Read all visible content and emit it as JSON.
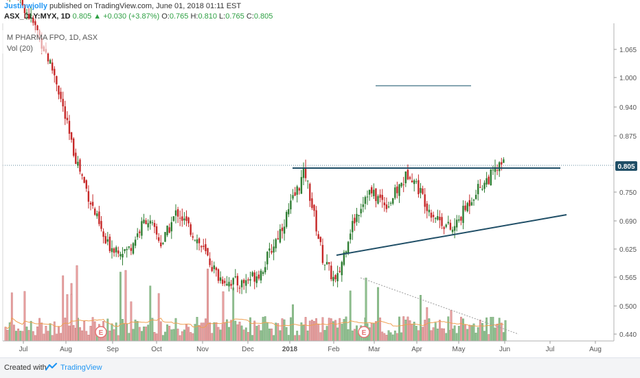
{
  "header": {
    "author": "Justinwjolly",
    "published_text": "published on TradingView.com, June 01, 2018 01:11 EST",
    "symbol": "ASX_DLY:MYX, 1D",
    "last": "0.805",
    "change": "+0.030 (+3.87%)",
    "open_label": "O:",
    "open": "0.765",
    "high_label": "H:",
    "high": "0.810",
    "low_label": "L:",
    "low": "0.765",
    "close_label": "C:",
    "close": "0.805"
  },
  "overlay": {
    "title": "M PHARMA FPO, 1D, ASX",
    "volume_label": "Vol (20)"
  },
  "footer": {
    "created_with": "Created with",
    "brand": "TradingView"
  },
  "colors": {
    "up_candle": "#2e7d32",
    "down_candle": "#c62828",
    "up_volume": "#8fbf8f",
    "down_volume": "#e8a0a0",
    "volume_ma": "#f0a050",
    "trendline": "#1f4e66",
    "price_badge": "#1f4e66"
  },
  "chart_data": {
    "type": "candlestick",
    "price_axis_ticks": [
      "1.065",
      "1.000",
      "0.940",
      "0.875",
      "0.805",
      "0.750",
      "0.690",
      "0.625",
      "0.565",
      "0.500",
      "0.440"
    ],
    "last_price_label": "0.805",
    "time_axis_ticks": [
      "Jul",
      "Aug",
      "Sep",
      "Oct",
      "Nov",
      "Dec",
      "2018",
      "Feb",
      "Mar",
      "Apr",
      "May",
      "Jun",
      "Jul",
      "Aug"
    ],
    "earnings_markers": [
      {
        "label": "E",
        "date": "Aug 2017"
      },
      {
        "label": "E",
        "date": "Feb 2018"
      }
    ],
    "trendlines": [
      {
        "name": "resistance",
        "from": [
          "Jan 2018",
          0.805
        ],
        "to": [
          "Jul 2018",
          0.805
        ]
      },
      {
        "name": "support",
        "from": [
          "Feb 2018",
          0.605
        ],
        "to": [
          "Jul 2018",
          0.695
        ]
      },
      {
        "name": "target",
        "from": [
          "Mar 2018",
          0.98
        ],
        "to": [
          "May 2018",
          0.98
        ]
      },
      {
        "name": "volume-decline",
        "from": [
          "Feb 2018",
          "high"
        ],
        "to": [
          "Jun 2018",
          "low"
        ]
      }
    ],
    "price_path": [
      [
        "Jul 2017",
        1.06
      ],
      [
        "Jul 2017",
        1.0
      ],
      [
        "Aug 2017",
        0.93
      ],
      [
        "Aug 2017",
        0.83
      ],
      [
        "Aug 2017",
        0.76
      ],
      [
        "Sep 2017",
        0.68
      ],
      [
        "Sep 2017",
        0.67
      ],
      [
        "Oct 2017",
        0.72
      ],
      [
        "Oct 2017",
        0.68
      ],
      [
        "Oct 2017",
        0.73
      ],
      [
        "Nov 2017",
        0.69
      ],
      [
        "Nov 2017",
        0.63
      ],
      [
        "Dec 2017",
        0.62
      ],
      [
        "Dec 2017",
        0.64
      ],
      [
        "Jan 2018",
        0.71
      ],
      [
        "Jan 2018",
        0.79
      ],
      [
        "Feb 2018",
        0.66
      ],
      [
        "Feb 2018",
        0.62
      ],
      [
        "Feb 2018",
        0.7
      ],
      [
        "Mar 2018",
        0.76
      ],
      [
        "Mar 2018",
        0.74
      ],
      [
        "Apr 2018",
        0.79
      ],
      [
        "Apr 2018",
        0.73
      ],
      [
        "May 2018",
        0.7
      ],
      [
        "May 2018",
        0.76
      ],
      [
        "Jun 2018",
        0.805
      ]
    ]
  }
}
